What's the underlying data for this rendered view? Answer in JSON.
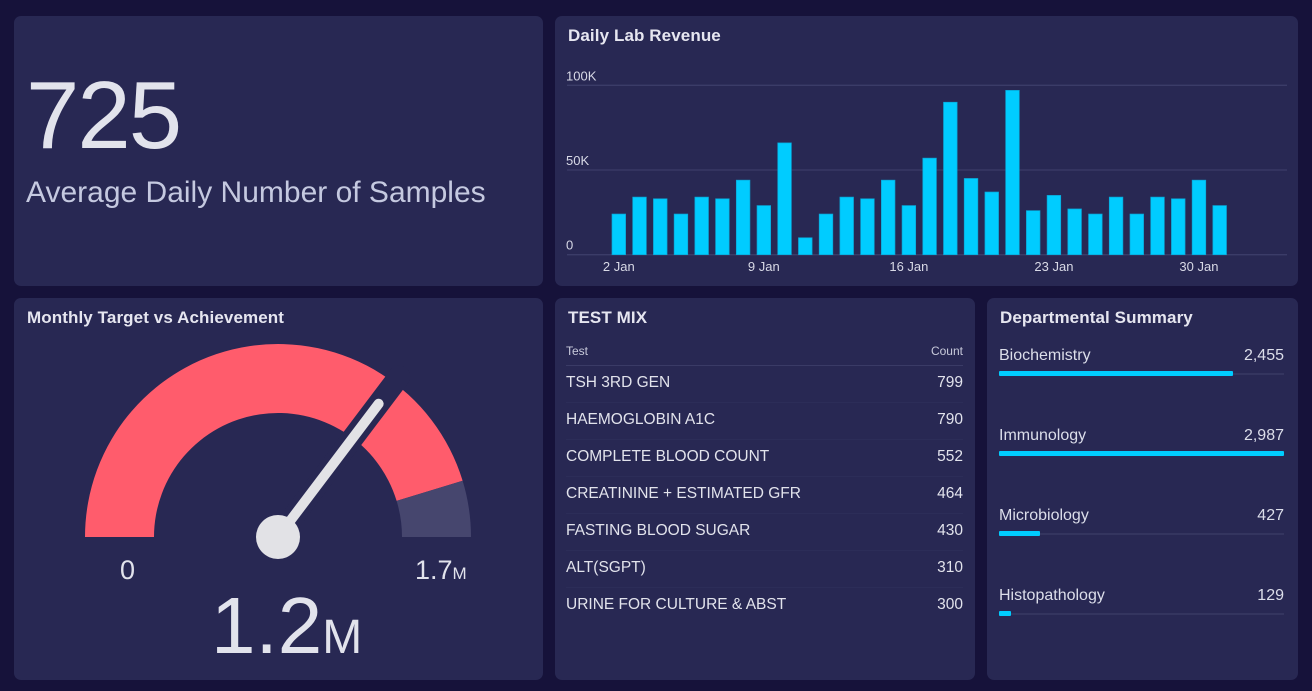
{
  "kpi": {
    "value": "725",
    "label": "Average Daily Number of Samples"
  },
  "revenue": {
    "title": "Daily Lab Revenue"
  },
  "gauge": {
    "title": "Monthly Target vs Achievement",
    "min_label": "0",
    "max_label_num": "1.7",
    "max_label_unit": "M",
    "value_num": "1.2",
    "value_unit": "M",
    "min": 0,
    "max": 1.7,
    "value": 1.2,
    "band_end": 1.54,
    "colors": {
      "band": "#ff5c6c",
      "rest": "#46466e",
      "needle": "#e2e2e6"
    }
  },
  "test_mix": {
    "title": "TEST MIX",
    "col_test": "Test",
    "col_count": "Count",
    "rows": [
      {
        "name": "TSH 3RD GEN",
        "count": "799"
      },
      {
        "name": "HAEMOGLOBIN A1C",
        "count": "790"
      },
      {
        "name": "COMPLETE BLOOD COUNT",
        "count": "552"
      },
      {
        "name": "CREATININE + ESTIMATED GFR",
        "count": "464"
      },
      {
        "name": "FASTING BLOOD SUGAR",
        "count": "430"
      },
      {
        "name": "ALT(SGPT)",
        "count": "310"
      },
      {
        "name": "URINE FOR CULTURE & ABST",
        "count": "300"
      }
    ]
  },
  "departments": {
    "title": "Departmental Summary",
    "items": [
      {
        "name": "Biochemistry",
        "value_label": "2,455",
        "value": 2455
      },
      {
        "name": "Immunology",
        "value_label": "2,987",
        "value": 2987
      },
      {
        "name": "Microbiology",
        "value_label": "427",
        "value": 427
      },
      {
        "name": "Histopathology",
        "value_label": "129",
        "value": 129
      }
    ],
    "bar_color": "#00ccff"
  },
  "chart_data": {
    "type": "bar",
    "title": "Daily Lab Revenue",
    "xlabel": "",
    "ylabel": "",
    "ylim": [
      0,
      100000
    ],
    "grid": true,
    "yticks": [
      0,
      50000,
      100000
    ],
    "ytick_labels": [
      "0",
      "50K",
      "100K"
    ],
    "xtick_labels": [
      "2 Jan",
      "9 Jan",
      "16 Jan",
      "23 Jan",
      "30 Jan"
    ],
    "xtick_indices": [
      0,
      7,
      14,
      21,
      28
    ],
    "categories": [
      "2 Jan",
      "3 Jan",
      "4 Jan",
      "5 Jan",
      "6 Jan",
      "7 Jan",
      "8 Jan",
      "9 Jan",
      "10 Jan",
      "11 Jan",
      "12 Jan",
      "13 Jan",
      "14 Jan",
      "15 Jan",
      "16 Jan",
      "17 Jan",
      "18 Jan",
      "19 Jan",
      "20 Jan",
      "21 Jan",
      "22 Jan",
      "23 Jan",
      "24 Jan",
      "25 Jan",
      "26 Jan",
      "27 Jan",
      "28 Jan",
      "29 Jan",
      "30 Jan",
      "31 Jan"
    ],
    "values": [
      24000,
      34000,
      33000,
      24000,
      34000,
      33000,
      44000,
      29000,
      66000,
      10000,
      24000,
      34000,
      33000,
      44000,
      29000,
      57000,
      90000,
      45000,
      37000,
      97000,
      26000,
      35000,
      27000,
      24000,
      34000,
      24000,
      34000,
      33000,
      44000,
      29000
    ],
    "color": "#00ccff"
  }
}
